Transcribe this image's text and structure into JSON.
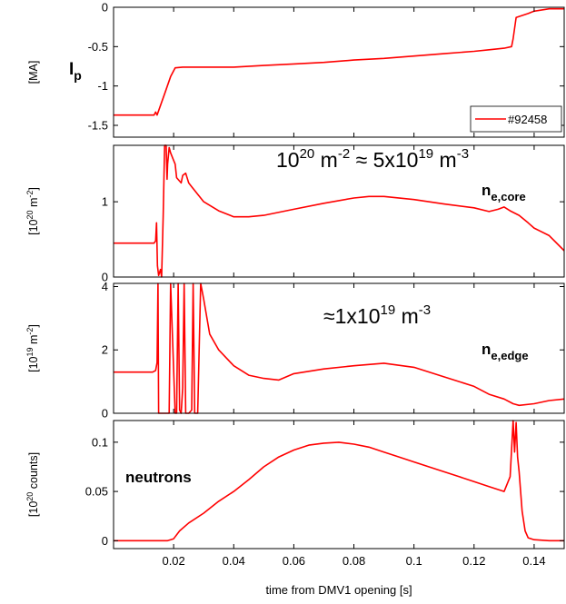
{
  "chart_data": [
    {
      "type": "line",
      "panel": "Ip",
      "ylabel": "[MA]",
      "annotation_main": "I",
      "annotation_sub": "p",
      "xlim": [
        0,
        0.15
      ],
      "ylim": [
        -1.65,
        0
      ],
      "yticks": [
        0,
        -0.5,
        -1,
        -1.5
      ],
      "ytick_labels": [
        "0",
        "-0.5",
        "-1",
        "-1.5"
      ],
      "legend": {
        "placement": "bottom-right",
        "entries": [
          "#92458"
        ]
      },
      "series": [
        {
          "name": "#92458",
          "color": "#ff0000",
          "x": [
            0,
            0.0135,
            0.014,
            0.0145,
            0.017,
            0.019,
            0.0205,
            0.023,
            0.03,
            0.04,
            0.05,
            0.06,
            0.07,
            0.08,
            0.09,
            0.1,
            0.11,
            0.12,
            0.125,
            0.13,
            0.1325,
            0.133,
            0.134,
            0.138,
            0.14,
            0.145,
            0.15
          ],
          "y": [
            -1.37,
            -1.37,
            -1.33,
            -1.37,
            -1.1,
            -0.88,
            -0.77,
            -0.76,
            -0.76,
            -0.76,
            -0.74,
            -0.72,
            -0.7,
            -0.67,
            -0.65,
            -0.62,
            -0.59,
            -0.56,
            -0.54,
            -0.52,
            -0.5,
            -0.4,
            -0.13,
            -0.08,
            -0.05,
            -0.02,
            -0.02
          ]
        }
      ]
    },
    {
      "type": "line",
      "panel": "ne_core",
      "ylabel_main": "[10",
      "ylabel_sup": "20",
      "ylabel_rest": " m",
      "ylabel_sup2": "-2",
      "ylabel_end": "]",
      "ylim": [
        0,
        1.75
      ],
      "yticks": [
        0,
        1
      ],
      "ytick_labels": [
        "0",
        "1"
      ],
      "xlim": [
        0,
        0.15
      ],
      "series": [
        {
          "name": "ne,core",
          "color": "#ff0000",
          "x": [
            0,
            0.0135,
            0.014,
            0.0143,
            0.0146,
            0.015,
            0.0156,
            0.016,
            0.0165,
            0.017,
            0.0172,
            0.0175,
            0.0178,
            0.018,
            0.0185,
            0.019,
            0.02,
            0.0205,
            0.021,
            0.0225,
            0.023,
            0.024,
            0.025,
            0.026,
            0.028,
            0.03,
            0.035,
            0.04,
            0.045,
            0.05,
            0.06,
            0.07,
            0.08,
            0.085,
            0.09,
            0.1,
            0.11,
            0.12,
            0.125,
            0.128,
            0.13,
            0.132,
            0.135,
            0.138,
            0.14,
            0.145,
            0.15
          ],
          "y": [
            0.45,
            0.45,
            0.48,
            0.72,
            0.15,
            0.02,
            0.1,
            0.0,
            0.8,
            1.75,
            1.78,
            1.75,
            1.3,
            1.5,
            1.72,
            1.65,
            1.55,
            1.5,
            1.32,
            1.25,
            1.35,
            1.38,
            1.25,
            1.2,
            1.1,
            1.0,
            0.88,
            0.8,
            0.8,
            0.82,
            0.9,
            0.98,
            1.05,
            1.07,
            1.07,
            1.03,
            0.97,
            0.92,
            0.87,
            0.9,
            0.93,
            0.88,
            0.82,
            0.72,
            0.65,
            0.55,
            0.35
          ]
        }
      ],
      "annotation_main": "n",
      "annotation_sub": "e,core",
      "note_parts": [
        "10",
        "20",
        " m",
        "-2",
        " ≈ 5x10",
        "19",
        " m",
        "-3"
      ]
    },
    {
      "type": "line",
      "panel": "ne_edge",
      "ylabel_main": "[10",
      "ylabel_sup": "19",
      "ylabel_rest": " m",
      "ylabel_sup2": "-2",
      "ylabel_end": "]",
      "ylim": [
        0,
        4.1
      ],
      "yticks": [
        0,
        2,
        4
      ],
      "ytick_labels": [
        "0",
        "2",
        "4"
      ],
      "xlim": [
        0,
        0.15
      ],
      "series": [
        {
          "name": "ne,edge",
          "color": "#ff0000",
          "x": [
            0,
            0.013,
            0.014,
            0.0145,
            0.0148,
            0.015,
            0.0152,
            0.0185,
            0.019,
            0.0205,
            0.021,
            0.0215,
            0.022,
            0.0225,
            0.023,
            0.0235,
            0.024,
            0.025,
            0.026,
            0.0265,
            0.027,
            0.0275,
            0.028,
            0.029,
            0.03,
            0.032,
            0.035,
            0.04,
            0.045,
            0.05,
            0.055,
            0.06,
            0.07,
            0.08,
            0.09,
            0.1,
            0.11,
            0.12,
            0.125,
            0.13,
            0.133,
            0.135,
            0.14,
            0.145,
            0.15
          ],
          "y": [
            1.3,
            1.3,
            1.35,
            1.6,
            4.1,
            0.0,
            0.0,
            0.0,
            4.1,
            0.0,
            0.0,
            4.1,
            0.1,
            0.0,
            0.8,
            4.1,
            0.0,
            0.0,
            0.1,
            4.1,
            0.0,
            0.0,
            0.0,
            4.1,
            3.6,
            2.5,
            2.0,
            1.5,
            1.2,
            1.1,
            1.05,
            1.25,
            1.4,
            1.5,
            1.58,
            1.45,
            1.15,
            0.85,
            0.6,
            0.45,
            0.3,
            0.25,
            0.3,
            0.4,
            0.45
          ]
        }
      ],
      "annotation_main": "n",
      "annotation_sub": "e,edge",
      "note_parts": [
        "≈1x10",
        "19",
        " m",
        "-3"
      ]
    },
    {
      "type": "line",
      "panel": "neutrons",
      "ylabel_main": "[10",
      "ylabel_sup": "20",
      "ylabel_rest": " counts]",
      "ylim": [
        -0.008,
        0.122
      ],
      "yticks": [
        0,
        0.05,
        0.1
      ],
      "ytick_labels": [
        "0",
        "0.05",
        "0.1"
      ],
      "xlim": [
        0,
        0.15
      ],
      "xticks": [
        0.02,
        0.04,
        0.06,
        0.08,
        0.1,
        0.12,
        0.14
      ],
      "xtick_labels": [
        "0.02",
        "0.04",
        "0.06",
        "0.08",
        "0.1",
        "0.12",
        "0.14"
      ],
      "xlabel": "time from DMV1 opening [s]",
      "series": [
        {
          "name": "neutrons",
          "color": "#ff0000",
          "x": [
            0,
            0.018,
            0.02,
            0.022,
            0.025,
            0.03,
            0.035,
            0.04,
            0.045,
            0.05,
            0.055,
            0.06,
            0.065,
            0.07,
            0.075,
            0.08,
            0.085,
            0.09,
            0.095,
            0.1,
            0.105,
            0.11,
            0.115,
            0.12,
            0.125,
            0.13,
            0.132,
            0.133,
            0.1335,
            0.134,
            0.1345,
            0.135,
            0.136,
            0.137,
            0.138,
            0.14,
            0.145,
            0.15
          ],
          "y": [
            0.0,
            0.0,
            0.002,
            0.01,
            0.018,
            0.028,
            0.04,
            0.05,
            0.062,
            0.075,
            0.085,
            0.092,
            0.097,
            0.099,
            0.1,
            0.098,
            0.095,
            0.09,
            0.085,
            0.08,
            0.075,
            0.07,
            0.065,
            0.06,
            0.055,
            0.05,
            0.065,
            0.125,
            0.09,
            0.12,
            0.085,
            0.07,
            0.03,
            0.01,
            0.003,
            0.001,
            0.0,
            0.0
          ]
        }
      ],
      "annotation_main": "neutrons"
    }
  ]
}
